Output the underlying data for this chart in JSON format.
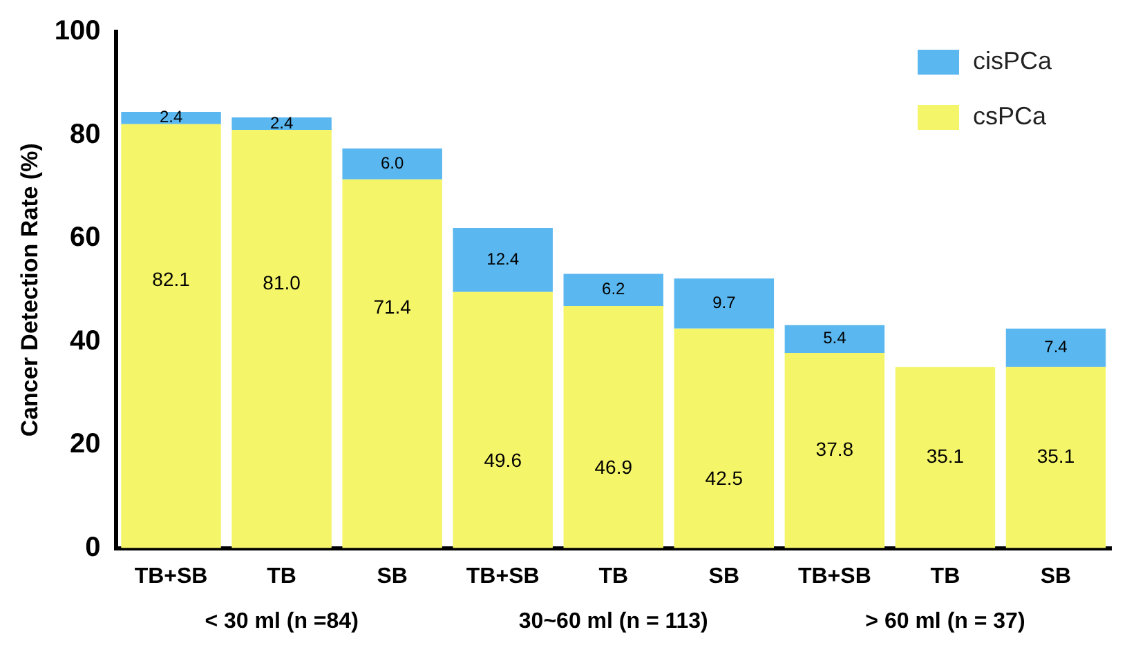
{
  "chart_data": {
    "type": "bar",
    "stacked": true,
    "ylabel": "Cancer Detection Rate (%)",
    "categories": [
      "TB+SB",
      "TB",
      "SB",
      "TB+SB",
      "TB",
      "SB",
      "TB+SB",
      "TB",
      "SB"
    ],
    "series": [
      {
        "name": "csPCa",
        "color": "#f5f56a",
        "values": [
          82.1,
          81.0,
          71.4,
          49.6,
          46.9,
          42.5,
          37.8,
          35.1,
          35.1
        ],
        "value_labels": [
          "82.1",
          "81.0",
          "71.4",
          "49.6",
          "46.9",
          "42.5",
          "37.8",
          "35.1",
          "35.1"
        ]
      },
      {
        "name": "cisPCa",
        "color": "#5ab7ef",
        "values": [
          2.4,
          2.4,
          6.0,
          12.4,
          6.2,
          9.7,
          5.4,
          null,
          7.4
        ],
        "value_labels": [
          "2.4",
          "2.4",
          "6.0",
          "12.4",
          "6.2",
          "9.7",
          "5.4",
          null,
          "7.4"
        ]
      }
    ],
    "annotations": [
      "< 30 ml (n =84)",
      "30~60 ml (n = 113)",
      "> 60 ml (n = 37)"
    ],
    "ylim": [
      0,
      100
    ],
    "yticks": [
      0,
      20,
      40,
      60,
      80,
      100
    ],
    "grid": false,
    "legend": "top right"
  }
}
